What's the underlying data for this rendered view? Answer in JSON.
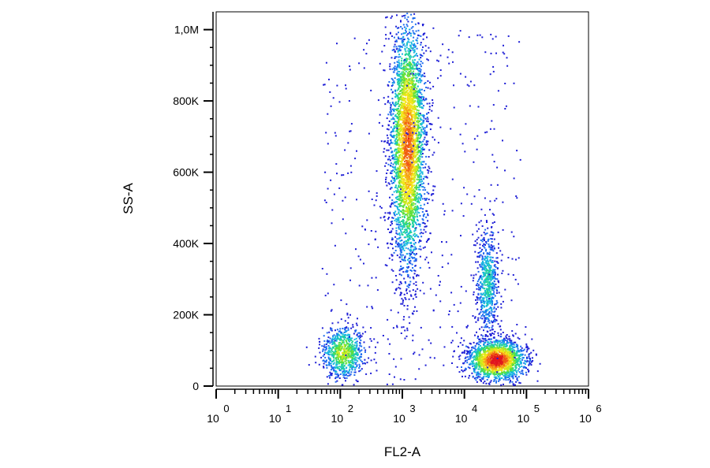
{
  "chart_data": {
    "type": "scatter",
    "subtype": "density-dot-plot",
    "xlabel": "FL2-A",
    "ylabel": "SS-A",
    "x_scale": "log",
    "xlim": [
      1,
      1000000
    ],
    "ylim": [
      0,
      1050000
    ],
    "x_tick_base": "10",
    "x_ticks": [
      {
        "value": 1,
        "exponent": "0"
      },
      {
        "value": 10,
        "exponent": "1"
      },
      {
        "value": 100,
        "exponent": "2"
      },
      {
        "value": 1000,
        "exponent": "3"
      },
      {
        "value": 10000,
        "exponent": "4"
      },
      {
        "value": 100000,
        "exponent": "5"
      },
      {
        "value": 1000000,
        "exponent": "6"
      }
    ],
    "y_ticks": [
      {
        "value": 0,
        "label": "0"
      },
      {
        "value": 200000,
        "label": "200K"
      },
      {
        "value": 400000,
        "label": "400K"
      },
      {
        "value": 600000,
        "label": "600K"
      },
      {
        "value": 800000,
        "label": "800K"
      },
      {
        "value": 1000000,
        "label": "1,0M"
      }
    ],
    "grid": false,
    "density_colors": [
      "#1f1fd6",
      "#1e6cf0",
      "#18b8e0",
      "#22d39a",
      "#5fe03c",
      "#c8e81e",
      "#f5e61a",
      "#f5a418",
      "#f05a14",
      "#e0141e"
    ],
    "populations": [
      {
        "x_center": 110,
        "y_center": 95000,
        "x_spread_log": 0.17,
        "y_spread": 38000,
        "count": 750,
        "peak": 0.55
      },
      {
        "x_center": 1200,
        "y_center": 680000,
        "x_spread_log": 0.14,
        "y_spread": 175000,
        "count": 3400,
        "peak": 0.85
      },
      {
        "x_center": 23000,
        "y_center": 290000,
        "x_spread_log": 0.09,
        "y_spread": 75000,
        "count": 650,
        "peak": 0.35
      },
      {
        "x_center": 32000,
        "y_center": 75000,
        "x_spread_log": 0.23,
        "y_spread": 28000,
        "count": 1700,
        "peak": 1.0
      }
    ]
  }
}
